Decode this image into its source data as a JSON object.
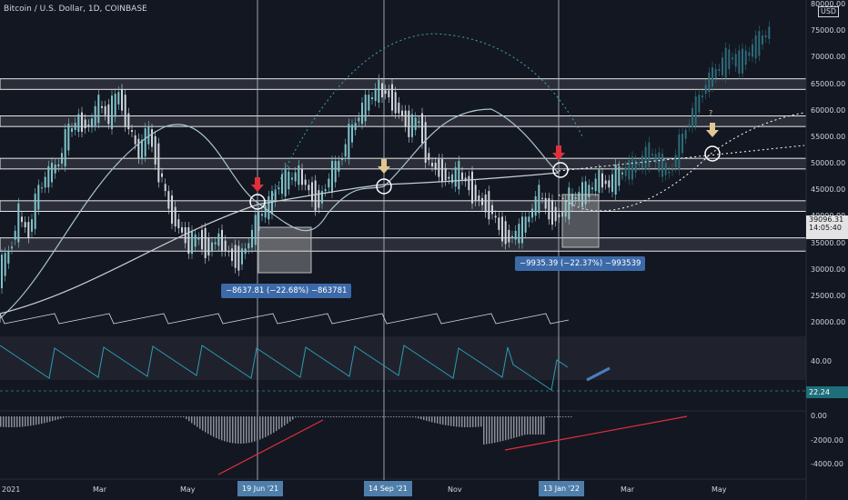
{
  "header": {
    "title": "Bitcoin / U.S. Dollar, 1D, COINBASE",
    "currency": "USD"
  },
  "chart_data": {
    "type": "candlestick",
    "title": "Bitcoin / U.S. Dollar, 1D, COINBASE",
    "x_labels": [
      "2021",
      "Mar",
      "May",
      "Nov",
      "Mar",
      "May"
    ],
    "highlighted_dates": [
      "19 Jun '21",
      "14 Sep '21",
      "13 Jan '22"
    ],
    "price_axis": {
      "ticks": [
        "80000.00",
        "75000.00",
        "70000.00",
        "65000.00",
        "60000.00",
        "55000.00",
        "50000.00",
        "45000.00",
        "40000.00",
        "35000.00",
        "30000.00",
        "25000.00",
        "20000.00"
      ],
      "current_price": "39096.31",
      "countdown": "14:05:40"
    },
    "rsi_panel": {
      "ticks": [
        "40.00"
      ],
      "current": "22.24"
    },
    "macd_panel": {
      "ticks": [
        "0.00",
        "-2000.00",
        "-4000.00"
      ]
    },
    "measurements": [
      "−8637.81 (−22.68%) −863781",
      "−9935.39 (−22.37%) −993539"
    ],
    "annotation_mark": "?",
    "price_path": [
      [
        0,
        29000
      ],
      [
        10,
        33000
      ],
      [
        20,
        40000
      ],
      [
        30,
        37000
      ],
      [
        40,
        45000
      ],
      [
        50,
        48000
      ],
      [
        60,
        50000
      ],
      [
        70,
        56000
      ],
      [
        80,
        58000
      ],
      [
        90,
        57000
      ],
      [
        100,
        61000
      ],
      [
        110,
        59000
      ],
      [
        120,
        63000
      ],
      [
        130,
        57000
      ],
      [
        140,
        52000
      ],
      [
        150,
        56000
      ],
      [
        160,
        49000
      ],
      [
        170,
        42000
      ],
      [
        180,
        38000
      ],
      [
        190,
        35000
      ],
      [
        200,
        36000
      ],
      [
        210,
        34000
      ],
      [
        220,
        36000
      ],
      [
        230,
        33000
      ],
      [
        240,
        32000
      ],
      [
        250,
        35000
      ],
      [
        260,
        40000
      ],
      [
        270,
        42000
      ],
      [
        280,
        46000
      ],
      [
        290,
        47000
      ],
      [
        300,
        48000
      ],
      [
        310,
        45000
      ],
      [
        320,
        43000
      ],
      [
        330,
        47000
      ],
      [
        340,
        50000
      ],
      [
        350,
        55000
      ],
      [
        360,
        59000
      ],
      [
        370,
        62000
      ],
      [
        380,
        64000
      ],
      [
        390,
        63000
      ],
      [
        400,
        60000
      ],
      [
        410,
        57000
      ],
      [
        420,
        58000
      ],
      [
        430,
        50000
      ],
      [
        440,
        49000
      ],
      [
        450,
        47000
      ],
      [
        460,
        48000
      ],
      [
        470,
        46000
      ],
      [
        480,
        43000
      ],
      [
        490,
        42000
      ],
      [
        500,
        38000
      ],
      [
        510,
        36000
      ],
      [
        520,
        37000
      ],
      [
        530,
        40000
      ],
      [
        540,
        44000
      ],
      [
        550,
        41000
      ],
      [
        560,
        40000
      ],
      [
        570,
        43000
      ],
      [
        580,
        44000
      ],
      [
        590,
        45000
      ],
      [
        600,
        47000
      ],
      [
        610,
        46000
      ],
      [
        620,
        48000
      ],
      [
        630,
        49000
      ],
      [
        640,
        50000
      ],
      [
        650,
        52000
      ],
      [
        660,
        50000
      ],
      [
        670,
        48000
      ],
      [
        680,
        53000
      ],
      [
        690,
        58000
      ],
      [
        700,
        62000
      ],
      [
        710,
        66000
      ],
      [
        720,
        68000
      ],
      [
        730,
        70000
      ],
      [
        740,
        69000
      ],
      [
        750,
        71000
      ],
      [
        760,
        73000
      ],
      [
        770,
        75000
      ]
    ]
  }
}
